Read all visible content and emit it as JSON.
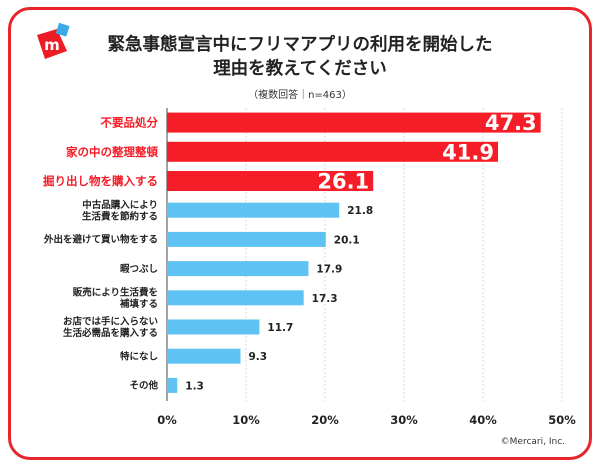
{
  "title_line1": "緊急事態宣言中にフリマアプリの利用を開始した",
  "title_line2": "理由を教えてください",
  "subtitle": "（複数回答｜n=463）",
  "copyright": "©Mercari, Inc.",
  "colors": {
    "frame": "#e8252b",
    "highlight": "#f51d27",
    "normal": "#5ec3f2",
    "logo": "#ee1c24",
    "logo_accent": "#3aa9e8"
  },
  "logo_icon": "mercari-logo-icon",
  "chart_data": {
    "type": "bar",
    "orientation": "horizontal",
    "categories": [
      "不要品処分",
      "家の中の整理整頓",
      "掘り出し物を購入する",
      "中古品購入により\n生活費を節約する",
      "外出を避けて買い物をする",
      "暇つぶし",
      "販売により生活費を\n補填する",
      "お店では手に入らない\n生活必需品を購入する",
      "特になし",
      "その他"
    ],
    "values": [
      47.3,
      41.9,
      26.1,
      21.8,
      20.1,
      17.9,
      17.3,
      11.7,
      9.3,
      1.3
    ],
    "highlighted": [
      true,
      true,
      true,
      false,
      false,
      false,
      false,
      false,
      false,
      false
    ],
    "value_labels": [
      "47.3",
      "41.9",
      "26.1",
      "21.8",
      "20.1",
      "17.9",
      "17.3",
      "11.7",
      "9.3",
      "1.3"
    ],
    "xlim": [
      0,
      50
    ],
    "xticks": [
      "0%",
      "10%",
      "20%",
      "30%",
      "40%",
      "50%"
    ],
    "xtick_values": [
      0,
      10,
      20,
      30,
      40,
      50
    ],
    "grid": true
  }
}
